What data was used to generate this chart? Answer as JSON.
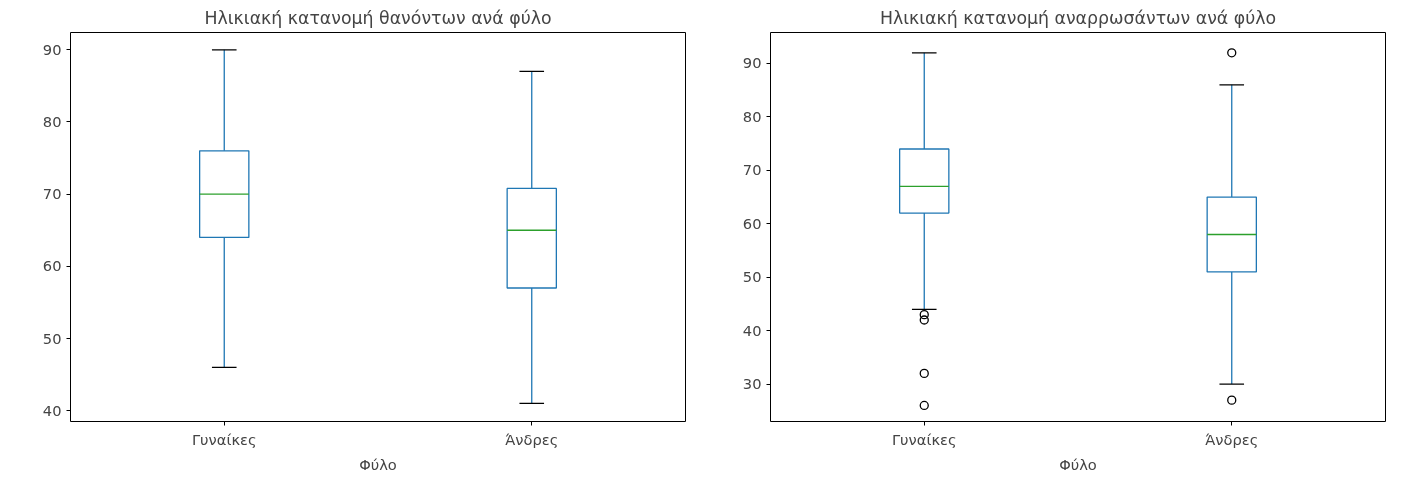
{
  "chart_data": [
    {
      "type": "box",
      "title": "Ηλικιακή κατανομή θανόντων ανά φύλο",
      "xlabel": "Φύλο",
      "categories": [
        "Γυναίκες",
        "Άνδρες"
      ],
      "ylim": [
        38.5,
        92.4
      ],
      "yticks": [
        40,
        50,
        60,
        70,
        80,
        90
      ],
      "grid": false,
      "series": [
        {
          "color": "#1f77b4",
          "boxes": [
            {
              "low": 46,
              "q1": 64,
              "median": 70,
              "q3": 76,
              "high": 90
            },
            {
              "low": 41,
              "q1": 57,
              "median": 65,
              "q3": 70.8,
              "high": 87
            }
          ]
        }
      ]
    },
    {
      "type": "box",
      "title": "Ηλικιακή κατανομή αναρρωσάντων ανά φύλο",
      "xlabel": "Φύλο",
      "categories": [
        "Γυναίκες",
        "Άνδρες"
      ],
      "ylim": [
        23,
        95.8
      ],
      "yticks": [
        30,
        40,
        50,
        60,
        70,
        80,
        90
      ],
      "grid": false,
      "series": [
        {
          "color": "#1f77b4",
          "boxes": [
            {
              "low": 44,
              "q1": 62,
              "median": 67,
              "q3": 74,
              "high": 92,
              "outliers": [
                43,
                42,
                32,
                26
              ]
            },
            {
              "low": 30,
              "q1": 51,
              "median": 58,
              "q3": 65,
              "high": 86,
              "outliers": [
                92,
                27
              ]
            }
          ]
        }
      ]
    }
  ]
}
